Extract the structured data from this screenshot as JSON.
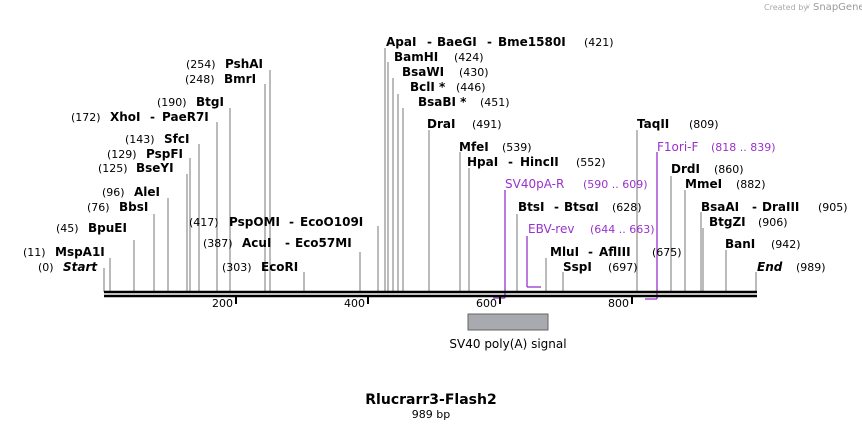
{
  "credit": {
    "created_by": "Created by",
    "brand": "SnapGene"
  },
  "map": {
    "title": "Rlucrarr3-Flash2",
    "length": "989 bp",
    "ticks": [
      "200",
      "400",
      "600",
      "800"
    ]
  },
  "sites": [
    {
      "pos": "(0)",
      "name": "Start"
    },
    {
      "pos": "(11)",
      "name": "MspA1I"
    },
    {
      "pos": "(45)",
      "name": "BpuEI"
    },
    {
      "pos": "(76)",
      "name": "BbsI"
    },
    {
      "pos": "(96)",
      "name": "AleI"
    },
    {
      "pos": "(125)",
      "name": "BseYI"
    },
    {
      "pos": "(129)",
      "name": "PspFI"
    },
    {
      "pos": "(143)",
      "name": "SfcI"
    },
    {
      "pos": "(172)",
      "name": "XhoI",
      "name2": "PaeR7I"
    },
    {
      "pos": "(190)",
      "name": "BtgI"
    },
    {
      "pos": "(248)",
      "name": "BmrI"
    },
    {
      "pos": "(254)",
      "name": "PshAI"
    },
    {
      "pos": "(303)",
      "name": "EcoRI"
    },
    {
      "pos": "(387)",
      "name": "AcuI",
      "name2": "Eco57MI"
    },
    {
      "pos": "(417)",
      "name": "PspOMI",
      "name2": "EcoO109I"
    },
    {
      "pos": "(421)",
      "name": "ApaI",
      "name2": "BaeGI",
      "name3": "Bme1580I"
    },
    {
      "pos": "(424)",
      "name": "BamHI"
    },
    {
      "pos": "(430)",
      "name": "BsaWI"
    },
    {
      "pos": "(446)",
      "name": "BclI *"
    },
    {
      "pos": "(451)",
      "name": "BsaBI *"
    },
    {
      "pos": "(491)",
      "name": "DraI"
    },
    {
      "pos": "(539)",
      "name": "MfeI"
    },
    {
      "pos": "(552)",
      "name": "HpaI",
      "name2": "HincII"
    },
    {
      "pos": "(628)",
      "name": "BtsI",
      "name2": "BtsαI"
    },
    {
      "pos": "(675)",
      "name": "MluI",
      "name2": "AflIII"
    },
    {
      "pos": "(697)",
      "name": "SspI"
    },
    {
      "pos": "(809)",
      "name": "TaqII"
    },
    {
      "pos": "(860)",
      "name": "DrdI"
    },
    {
      "pos": "(882)",
      "name": "MmeI"
    },
    {
      "pos": "(905)",
      "name": "BsaAI",
      "name2": "DraIII"
    },
    {
      "pos": "(906)",
      "name": "BtgZI"
    },
    {
      "pos": "(942)",
      "name": "BanI"
    },
    {
      "pos": "(989)",
      "name": "End"
    }
  ],
  "primers": [
    {
      "name": "SV40pA-R",
      "range": "(590 .. 609)"
    },
    {
      "name": "EBV-rev",
      "range": "(644 .. 663)"
    },
    {
      "name": "F1ori-F",
      "range": "(818 .. 839)"
    }
  ],
  "features": [
    {
      "name": "SV40 poly(A) signal"
    }
  ],
  "colors": {
    "primer": "#9932cc",
    "feature_fill": "#a8aab0",
    "backbone": "#000000",
    "connector": "#777777"
  }
}
